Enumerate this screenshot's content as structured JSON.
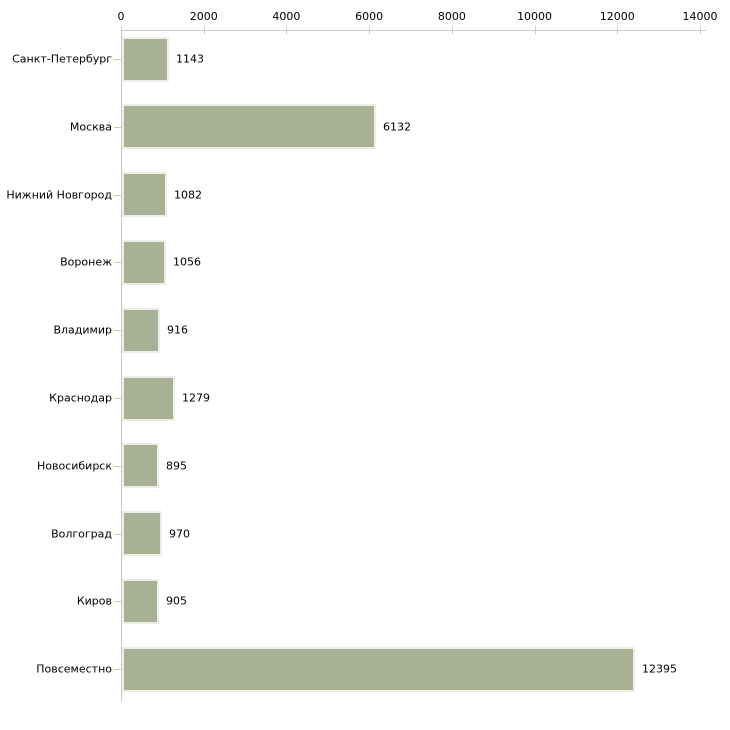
{
  "chart_data": {
    "type": "bar",
    "orientation": "horizontal",
    "title": "",
    "xlabel": "",
    "ylabel": "",
    "categories": [
      "Санкт-Петербург",
      "Москва",
      "Нижний Новгород",
      "Воронеж",
      "Владимир",
      "Краснодар",
      "Новосибирск",
      "Волгоград",
      "Киров",
      "Повсеместно"
    ],
    "values": [
      1143,
      6132,
      1082,
      1056,
      916,
      1279,
      895,
      970,
      905,
      12395
    ],
    "value_labels": [
      "1143",
      "6132",
      "1082",
      "1056",
      "916",
      "1279",
      "895",
      "970",
      "905",
      "12395"
    ],
    "xlim": [
      0,
      14000
    ],
    "x_ticks": [
      0,
      2000,
      4000,
      6000,
      8000,
      10000,
      12000,
      14000
    ],
    "x_tick_labels": [
      "0",
      "2000",
      "4000",
      "6000",
      "8000",
      "10000",
      "12000",
      "14000"
    ],
    "grid": false,
    "legend": null,
    "axis_position": "top",
    "colors": {
      "bar_fill": "#a9b195",
      "bar_border": "#eeeee8",
      "axis_line": "#c9c9c9",
      "tick_mark": "#cdd1a5",
      "text": "#000000",
      "background": "#ffffff"
    }
  }
}
